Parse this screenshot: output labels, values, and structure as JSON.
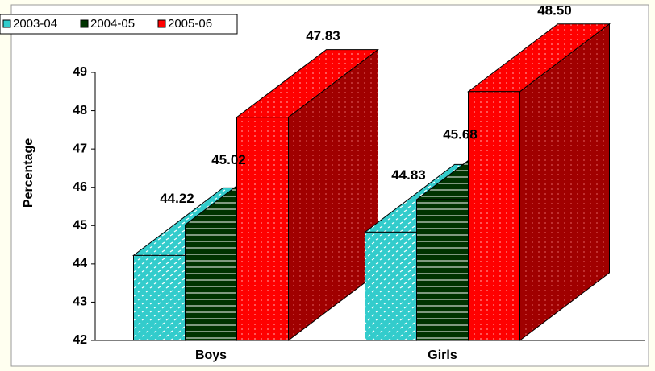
{
  "chart_data": {
    "type": "bar3d",
    "y_label": "Percentage",
    "categories": [
      "Boys",
      "Girls"
    ],
    "series": [
      {
        "name": "2003-04",
        "color": "#33cccc",
        "values": [
          44.22,
          44.83
        ],
        "value_labels": [
          "44.22",
          "44.83"
        ]
      },
      {
        "name": "2004-05",
        "color": "#003300",
        "values": [
          45.02,
          45.68
        ],
        "value_labels": [
          "45.02",
          "45.68"
        ]
      },
      {
        "name": "2005-06",
        "color": "#ff0000",
        "values": [
          47.83,
          48.5
        ],
        "value_labels": [
          "47.83",
          "48.50"
        ]
      }
    ],
    "ylim": [
      42,
      49
    ],
    "yticks": [
      42,
      43,
      44,
      45,
      46,
      47,
      48,
      49
    ],
    "grid": false,
    "legend": "top-left"
  }
}
